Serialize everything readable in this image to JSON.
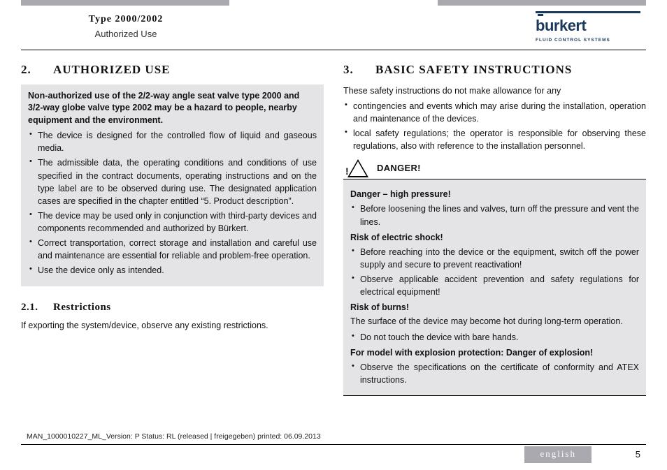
{
  "colors": {
    "bar": "#a9a9af",
    "brand": "#1b3a5b",
    "box_bg": "#e4e4e7",
    "text": "#111111",
    "page_bg": "#ffffff"
  },
  "header": {
    "type_line": "Type 2000/2002",
    "subtitle": "Authorized Use",
    "brand_name": "burkert",
    "brand_tag": "FLUID CONTROL SYSTEMS"
  },
  "left": {
    "sec_num": "2.",
    "sec_title": "AUTHORIZED USE",
    "warn_lead": "Non-authorized use of the 2/2-way angle seat valve type 2000 and 3/2-way globe valve type 2002 may be a hazard to people, nearby equipment and the environment.",
    "bullets": [
      "The device is designed for the controlled flow of liquid and gaseous media.",
      "The admissible data, the operating conditions and conditions of use specified in the contract documents, operating instructions and on the type label are to be observed during use. The designated application cases are specified in the chapter entitled “5. Product description”.",
      "The device may be used only in conjunction with third-party devices and components recommended and authorized by Bürkert.",
      "Correct transportation, correct storage and installation and careful use and maintenance are essential for reliable and problem-free operation.",
      "Use the device only as intended."
    ],
    "sub_num": "2.1.",
    "sub_title": "Restrictions",
    "sub_text": "If exporting the system/device, observe any existing restrictions."
  },
  "right": {
    "sec_num": "3.",
    "sec_title": "BASIC SAFETY INSTRUCTIONS",
    "intro": "These safety instructions do not make allowance for any",
    "intro_bullets": [
      "contingencies and events which may arise during the installation, operation and maintenance of the devices.",
      "local safety regulations; the operator is responsible for observing these regulations, also with reference to the installation personnel."
    ],
    "danger_label": "DANGER!",
    "danger": {
      "h1": "Danger – high pressure!",
      "b1": [
        "Before loosening the lines and valves, turn off the pressure and vent the lines."
      ],
      "h2": "Risk of electric shock!",
      "b2": [
        "Before reaching into the device or the equipment, switch off the power supply and secure to prevent reactivation!",
        "Observe applicable accident prevention and safety regulations for electrical equipment!"
      ],
      "h3": "Risk of burns!",
      "t3": "The surface of the device may become hot during long-term operation.",
      "b3": [
        "Do not touch the device with bare hands."
      ],
      "h4": "For model with explosion protection: Danger of explosion!",
      "b4": [
        "Observe the specifications on the certificate of conformity and ATEX instructions."
      ]
    }
  },
  "footer": {
    "doc_id": "MAN_1000010227_ML_Version: P Status: RL (released | freigegeben)  printed: 06.09.2013",
    "language": "english",
    "page": "5"
  }
}
